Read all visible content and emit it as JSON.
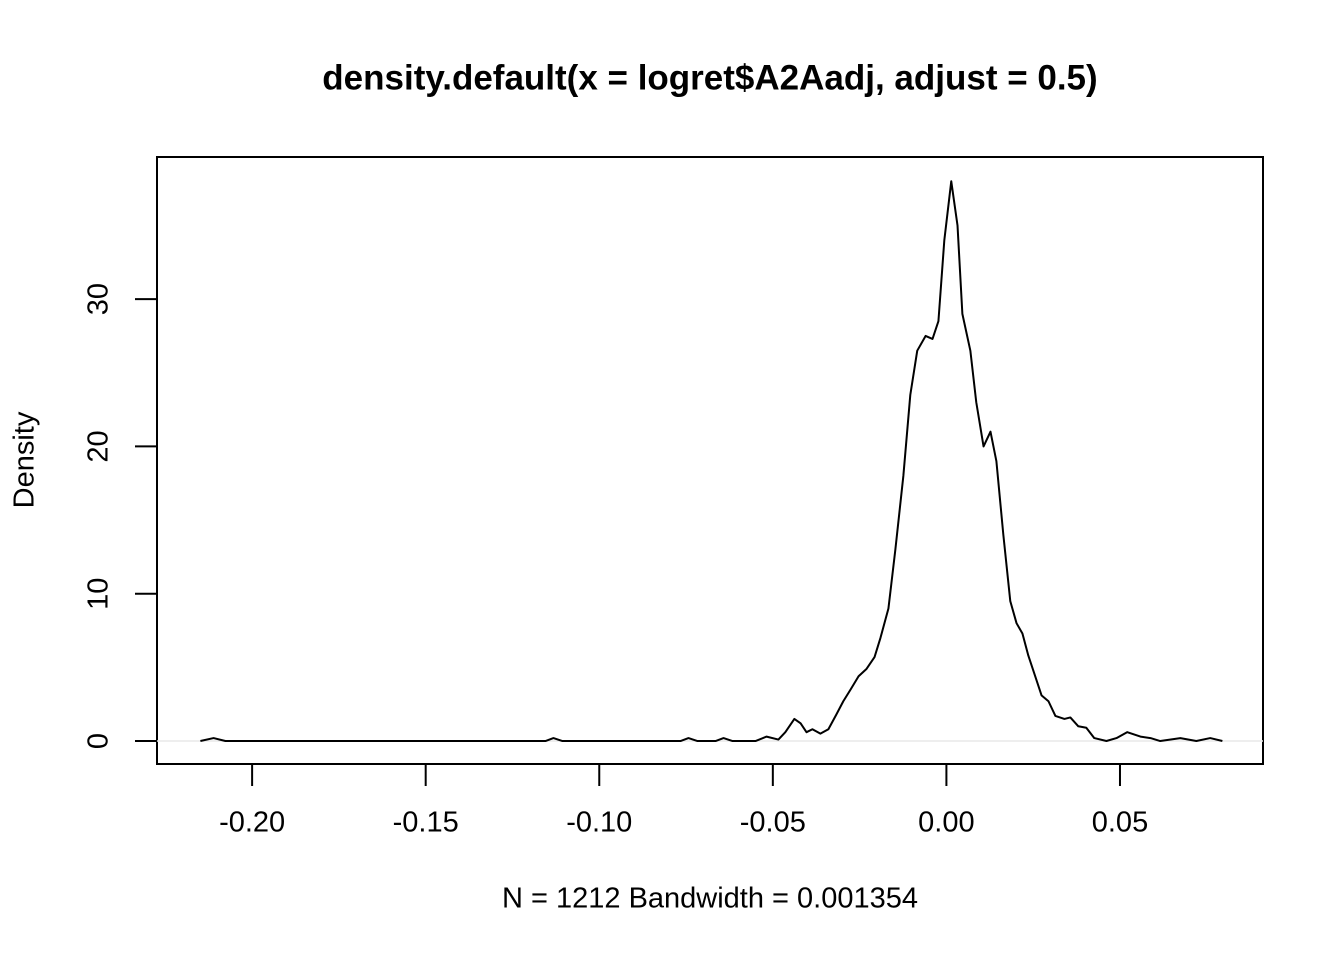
{
  "chart_data": {
    "type": "line",
    "title": "density.default(x = logret$A2Aadj, adjust = 0.5)",
    "xlabel": "N = 1212   Bandwidth = 0.001354",
    "ylabel": "Density",
    "xlim": [
      -0.2274,
      0.0912
    ],
    "ylim": [
      -1.56,
      39.65
    ],
    "xticks": [
      {
        "value": -0.2,
        "label": "-0.20"
      },
      {
        "value": -0.15,
        "label": "-0.15"
      },
      {
        "value": -0.1,
        "label": "-0.10"
      },
      {
        "value": -0.05,
        "label": "-0.05"
      },
      {
        "value": 0,
        "label": "0.00"
      },
      {
        "value": 0.05,
        "label": "0.05"
      }
    ],
    "yticks": [
      0,
      10,
      20,
      30
    ],
    "hline": {
      "value": 0,
      "color": "#e8e8e8"
    },
    "series": [
      {
        "color": "#000000",
        "x": [
          -0.2149,
          -0.2111,
          -0.2077,
          -0.1155,
          -0.1132,
          -0.1106,
          -0.0766,
          -0.0743,
          -0.0717,
          -0.0665,
          -0.0642,
          -0.0616,
          -0.055,
          -0.0518,
          -0.0484,
          -0.0464,
          -0.0438,
          -0.042,
          -0.0403,
          -0.0386,
          -0.0363,
          -0.034,
          -0.0317,
          -0.0297,
          -0.0276,
          -0.0253,
          -0.023,
          -0.0207,
          -0.019,
          -0.0167,
          -0.0147,
          -0.0124,
          -0.0104,
          -0.0084,
          -0.006,
          -0.004,
          -0.0023,
          -0.0006,
          0.0014,
          0.0032,
          0.0046,
          0.0069,
          0.0086,
          0.0107,
          0.0127,
          0.0144,
          0.0164,
          0.0184,
          0.0202,
          0.0219,
          0.0236,
          0.0253,
          0.0274,
          0.0294,
          0.0314,
          0.034,
          0.0357,
          0.038,
          0.0403,
          0.0426,
          0.0461,
          0.049,
          0.0521,
          0.0559,
          0.0588,
          0.0616,
          0.0674,
          0.072,
          0.076,
          0.0795
        ],
        "values": [
          0,
          0.2,
          0,
          0,
          0.2,
          0,
          0,
          0.2,
          0,
          0,
          0.2,
          0,
          0,
          0.3,
          0.1,
          0.6,
          1.5,
          1.2,
          0.6,
          0.8,
          0.5,
          0.8,
          1.8,
          2.7,
          3.5,
          4.4,
          4.9,
          5.7,
          7.0,
          9.0,
          13,
          18,
          23.5,
          26.5,
          27.5,
          27.3,
          28.5,
          34,
          38,
          35,
          29,
          26.5,
          23,
          20,
          21,
          19,
          14,
          9.5,
          8,
          7.3,
          5.8,
          4.6,
          3.1,
          2.7,
          1.7,
          1.5,
          1.6,
          1.0,
          0.9,
          0.2,
          0,
          0.2,
          0.6,
          0.3,
          0.2,
          0,
          0.2,
          0,
          0.2,
          0
        ]
      }
    ]
  }
}
